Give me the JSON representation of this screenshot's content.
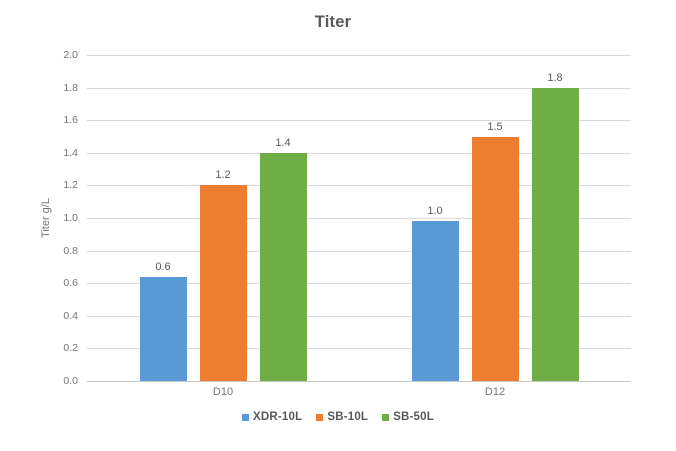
{
  "chart_data": {
    "type": "bar",
    "title": "Titer",
    "xlabel": "",
    "ylabel": "Titer g/L",
    "categories": [
      "D10",
      "D12"
    ],
    "series": [
      {
        "name": "XDR-10L",
        "color": "#5B9BD5",
        "values": [
          0.64,
          0.98
        ],
        "labels": [
          "0.6",
          "1.0"
        ]
      },
      {
        "name": "SB-10L",
        "color": "#ED7D31",
        "values": [
          1.2,
          1.5
        ],
        "labels": [
          "1.2",
          "1.5"
        ]
      },
      {
        "name": "SB-50L",
        "color": "#70AD47",
        "values": [
          1.4,
          1.8
        ],
        "labels": [
          "1.4",
          "1.8"
        ]
      }
    ],
    "ylim": [
      0.0,
      2.0
    ],
    "ytick_step": 0.2,
    "ytick_labels": [
      "0.0",
      "0.2",
      "0.4",
      "0.6",
      "0.8",
      "1.0",
      "1.2",
      "1.4",
      "1.6",
      "1.8",
      "2.0"
    ],
    "grid": true,
    "legend_position": "bottom",
    "colors": {
      "grid": "#D9D9D9",
      "axis_text": "#757575",
      "data_label_text": "#595959",
      "title_text": "#595959"
    }
  }
}
